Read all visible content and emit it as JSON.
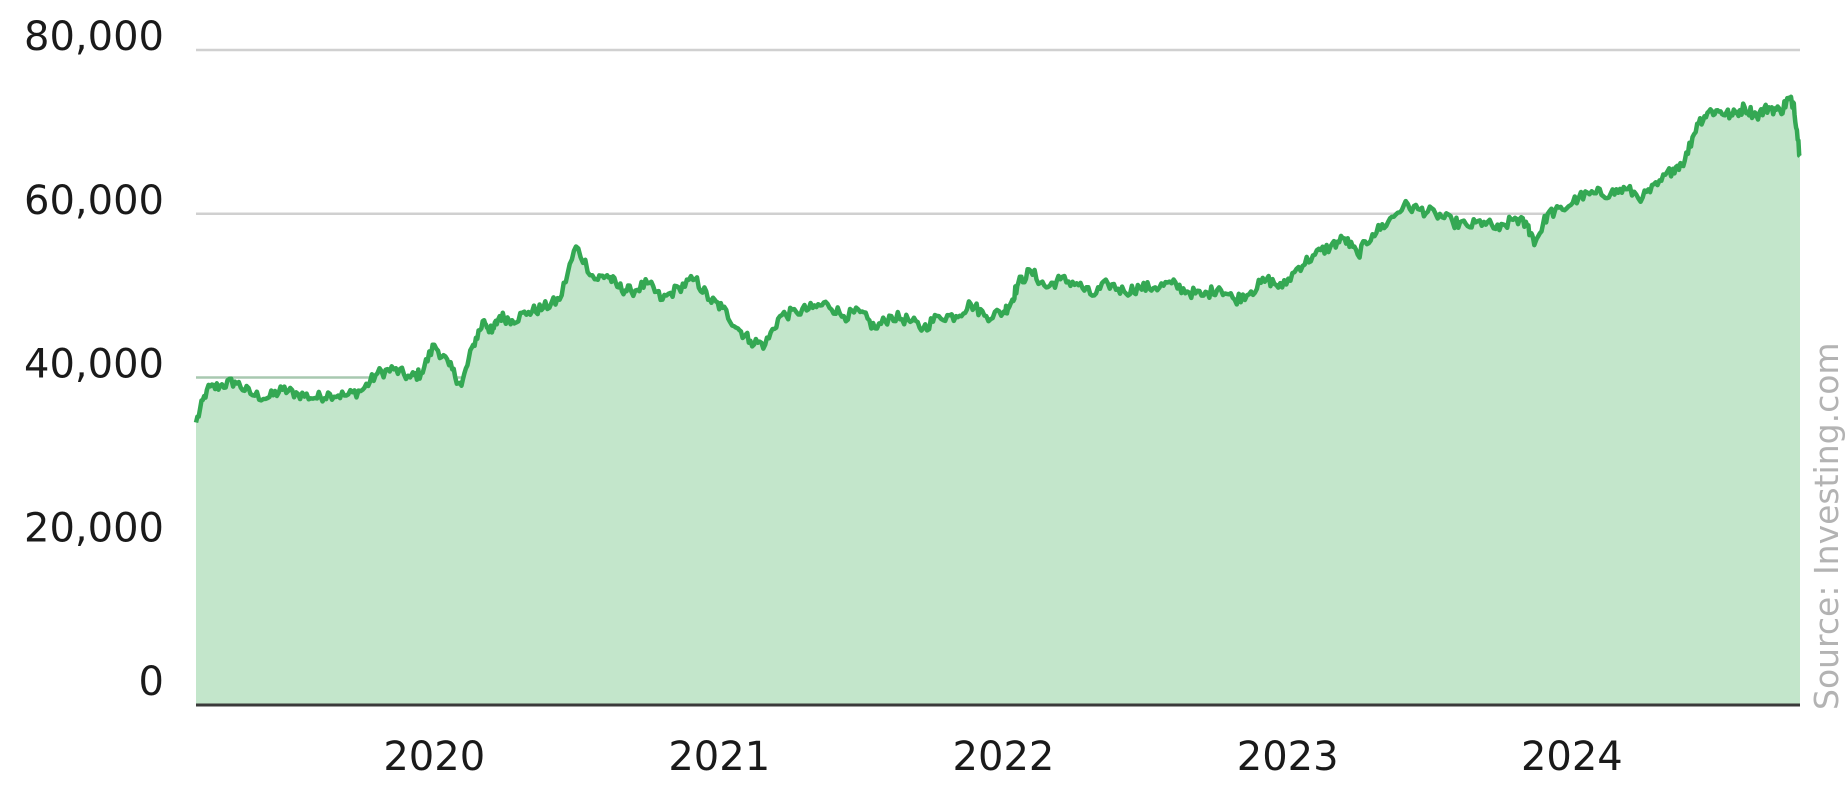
{
  "chart_data": {
    "type": "area",
    "title": "",
    "xlabel": "",
    "ylabel": "",
    "source": "Source: Investing.com",
    "colors": {
      "line": "#34a853",
      "fill": "#c3e6cb",
      "grid_light": "#d0d0d0",
      "grid_dark": "#a8c9b0",
      "baseline": "#3a3a3a",
      "text": "#1a1a1a",
      "source_text": "#b3b3b3"
    },
    "ylim": [
      0,
      80000
    ],
    "xlim": [
      "2019-03-01",
      "2024-10-20"
    ],
    "grid": true,
    "legend": "none",
    "y_ticks": [
      {
        "value": 0,
        "label": "0"
      },
      {
        "value": 20000,
        "label": "20,000"
      },
      {
        "value": 40000,
        "label": "40,000"
      },
      {
        "value": 60000,
        "label": "60,000"
      },
      {
        "value": 80000,
        "label": "80,000"
      }
    ],
    "x_ticks": [
      {
        "date": "2020-01-01",
        "label": "2020"
      },
      {
        "date": "2021-01-01",
        "label": "2021"
      },
      {
        "date": "2022-01-01",
        "label": "2022"
      },
      {
        "date": "2023-01-01",
        "label": "2023"
      },
      {
        "date": "2024-01-01",
        "label": "2024"
      }
    ],
    "series": [
      {
        "x": [
          "2019-03-01",
          "2019-03-15",
          "2019-04-01",
          "2019-04-20",
          "2019-05-10",
          "2019-06-01",
          "2019-06-20",
          "2019-07-10",
          "2019-08-01",
          "2019-08-20",
          "2019-09-10",
          "2019-10-01",
          "2019-10-20",
          "2019-11-10",
          "2019-12-01",
          "2019-12-15",
          "2020-01-01",
          "2020-01-20",
          "2020-02-05",
          "2020-02-20",
          "2020-03-05",
          "2020-03-15",
          "2020-03-25",
          "2020-04-10",
          "2020-05-01",
          "2020-05-20",
          "2020-06-10",
          "2020-07-01",
          "2020-07-25",
          "2020-08-10",
          "2020-08-25",
          "2020-09-10",
          "2020-10-01",
          "2020-10-20",
          "2020-11-10",
          "2020-12-01",
          "2020-12-20",
          "2021-01-05",
          "2021-01-25",
          "2021-02-10",
          "2021-03-01",
          "2021-03-20",
          "2021-04-10",
          "2021-05-01",
          "2021-05-20",
          "2021-06-10",
          "2021-07-01",
          "2021-07-20",
          "2021-08-10",
          "2021-09-01",
          "2021-09-20",
          "2021-10-10",
          "2021-11-01",
          "2021-11-20",
          "2021-12-10",
          "2022-01-01",
          "2022-01-10",
          "2022-01-20",
          "2022-02-05",
          "2022-02-25",
          "2022-03-15",
          "2022-04-05",
          "2022-04-25",
          "2022-05-15",
          "2022-06-05",
          "2022-06-25",
          "2022-07-15",
          "2022-08-05",
          "2022-08-25",
          "2022-09-15",
          "2022-10-05",
          "2022-10-25",
          "2022-11-15",
          "2022-12-05",
          "2022-12-25",
          "2023-01-15",
          "2023-02-05",
          "2023-02-25",
          "2023-03-15",
          "2023-04-01",
          "2023-04-20",
          "2023-05-10",
          "2023-05-30",
          "2023-06-20",
          "2023-07-10",
          "2023-08-01",
          "2023-08-20",
          "2023-09-10",
          "2023-09-30",
          "2023-10-20",
          "2023-11-05",
          "2023-11-15",
          "2023-12-01",
          "2023-12-20",
          "2024-01-10",
          "2024-02-01",
          "2024-02-20",
          "2024-03-10",
          "2024-04-01",
          "2024-04-20",
          "2024-05-10",
          "2024-05-25",
          "2024-06-10",
          "2024-06-25",
          "2024-07-10",
          "2024-07-25",
          "2024-08-10",
          "2024-08-25",
          "2024-09-10",
          "2024-09-25",
          "2024-10-05",
          "2024-10-12",
          "2024-10-20"
        ],
        "values": [
          34500,
          38500,
          39000,
          39500,
          38000,
          37500,
          38500,
          38000,
          37500,
          38000,
          37800,
          38500,
          40500,
          41000,
          40000,
          40500,
          44000,
          41500,
          39000,
          44000,
          47000,
          45500,
          47500,
          47000,
          48000,
          48500,
          49500,
          56000,
          52000,
          52500,
          51000,
          50500,
          51500,
          49500,
          51000,
          52000,
          49500,
          48500,
          46000,
          44500,
          44000,
          47500,
          48000,
          48500,
          49000,
          47500,
          48000,
          46000,
          47500,
          47000,
          46000,
          47500,
          47500,
          49000,
          47500,
          48000,
          49000,
          51500,
          53000,
          51000,
          52000,
          51500,
          50000,
          51500,
          50500,
          51000,
          51000,
          51500,
          50500,
          50000,
          51000,
          49500,
          50500,
          52000,
          51000,
          53500,
          55000,
          56000,
          57000,
          55000,
          57500,
          59000,
          61000,
          60500,
          60000,
          59000,
          58500,
          59000,
          58000,
          59500,
          58500,
          56500,
          60000,
          60500,
          62000,
          62500,
          62500,
          63000,
          62000,
          63500,
          65500,
          66500,
          71000,
          72500,
          72500,
          72000,
          73000,
          72000,
          73000,
          72500,
          74000,
          73500,
          67000
        ]
      }
    ]
  }
}
